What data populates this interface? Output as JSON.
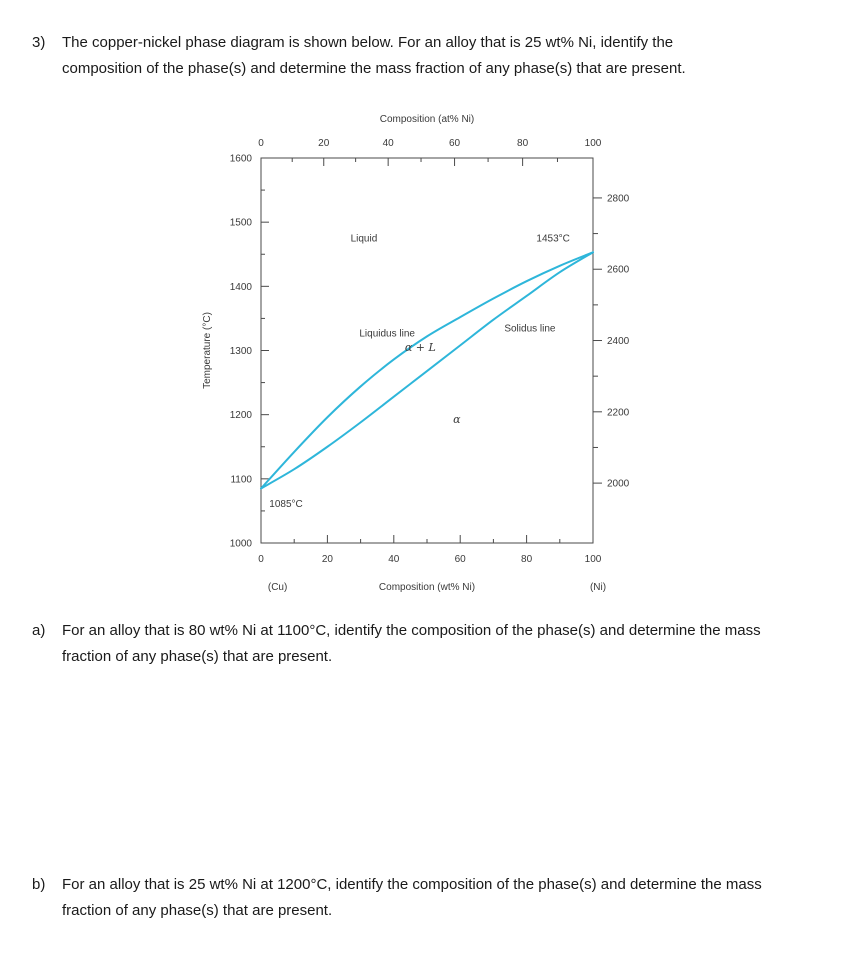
{
  "content": {
    "questions": [
      {
        "label": "3)",
        "text": "The copper-nickel phase diagram is shown below. For an alloy that is 25 wt% Ni, identify the composition of the phase(s) and determine the mass fraction of any phase(s) that are present."
      },
      {
        "label": "a)",
        "text": "For an alloy that is 80 wt% Ni at 1100°C, identify the composition of the phase(s) and determine the mass fraction of any phase(s) that are present."
      },
      {
        "label": "b)",
        "text": "For an alloy that is 25 wt% Ni at 1200°C, identify the composition of the phase(s) and determine the mass fraction of any phase(s) that are present."
      }
    ]
  },
  "chart_data": {
    "type": "line",
    "axes": {
      "top": {
        "label": "Composition (at% Ni)",
        "ticks": [
          0,
          20,
          40,
          60,
          80,
          100
        ],
        "tick_positions_wt": [
          0,
          18.9,
          38.3,
          58.3,
          78.8,
          100
        ],
        "minor_tick_positions_wt": [
          9.4,
          28.5,
          48.2,
          68.4,
          89.3
        ]
      },
      "bottom": {
        "label": "Composition (wt% Ni)",
        "ticks": [
          0,
          20,
          40,
          60,
          80,
          100
        ],
        "minor_ticks": [
          10,
          30,
          50,
          70,
          90
        ],
        "left_end_label": "(Cu)",
        "right_end_label": "(Ni)"
      },
      "left": {
        "label": "Temperature (°C)",
        "ticks": [
          1000,
          1100,
          1200,
          1300,
          1400,
          1500,
          1600
        ],
        "minor_ticks": [
          1050,
          1150,
          1250,
          1350,
          1450,
          1550
        ],
        "range": [
          1000,
          1600
        ]
      },
      "right": {
        "unit": "°F",
        "ticks": [
          2000,
          2200,
          2400,
          2600,
          2800
        ],
        "minor_ticks": [
          2100,
          2300,
          2500,
          2700
        ]
      }
    },
    "series": [
      {
        "name": "liquidus",
        "points": [
          [
            0,
            1085
          ],
          [
            10,
            1142
          ],
          [
            20,
            1196
          ],
          [
            30,
            1244
          ],
          [
            40,
            1286
          ],
          [
            50,
            1322
          ],
          [
            60,
            1352
          ],
          [
            70,
            1381
          ],
          [
            80,
            1408
          ],
          [
            90,
            1432
          ],
          [
            100,
            1453
          ]
        ]
      },
      {
        "name": "solidus",
        "points": [
          [
            0,
            1085
          ],
          [
            10,
            1115
          ],
          [
            20,
            1150
          ],
          [
            30,
            1188
          ],
          [
            40,
            1228
          ],
          [
            50,
            1268
          ],
          [
            60,
            1308
          ],
          [
            70,
            1348
          ],
          [
            80,
            1385
          ],
          [
            90,
            1422
          ],
          [
            100,
            1453
          ]
        ]
      }
    ],
    "annotations": [
      {
        "name": "liquid-region-label",
        "text": "Liquid",
        "x": 31,
        "y": 1470
      },
      {
        "name": "melting-point-ni-label",
        "text": "1453°C",
        "x": 88,
        "y": 1470
      },
      {
        "name": "liquidus-line-label",
        "text": "Liquidus line",
        "x": 38,
        "y": 1322
      },
      {
        "name": "alpha-plus-liquid-label",
        "text": "α + L",
        "x": 48,
        "y": 1299,
        "italic": true
      },
      {
        "name": "solidus-line-label",
        "text": "Solidus line",
        "x": 81,
        "y": 1330
      },
      {
        "name": "alpha-region-label",
        "text": "α",
        "x": 59,
        "y": 1187,
        "italic": true
      },
      {
        "name": "melting-point-cu-label",
        "text": "1085°C",
        "x": 2.5,
        "y": 1056,
        "anchor": "start"
      }
    ],
    "line_color": "#2eb6da"
  }
}
